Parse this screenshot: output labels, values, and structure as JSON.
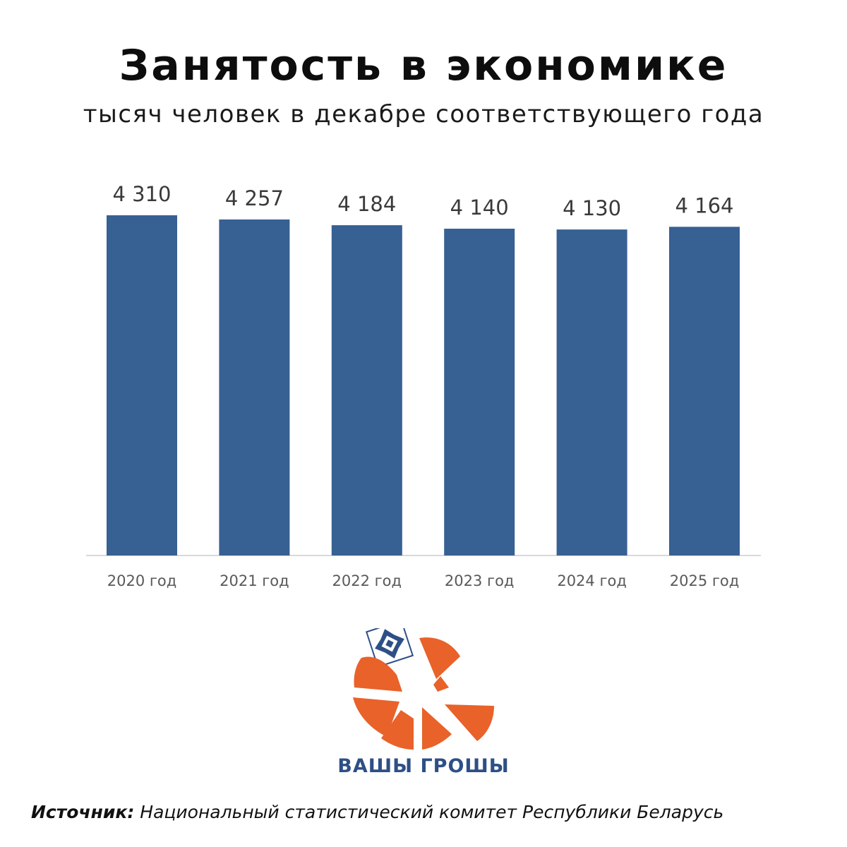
{
  "header": {
    "title": "Занятость в экономике",
    "subtitle": "тысяч человек в декабре соответствующего года"
  },
  "chart_data": {
    "type": "bar",
    "title": "Занятость в экономике",
    "subtitle": "тысяч человек в декабре соответствующего года",
    "categories": [
      "2020 год",
      "2021 год",
      "2022 год",
      "2023 год",
      "2024 год",
      "2025 год"
    ],
    "values": [
      4310,
      4257,
      4184,
      4140,
      4130,
      4164
    ],
    "value_labels": [
      "4 310",
      "4 257",
      "4 184",
      "4 140",
      "4 130",
      "4 164"
    ],
    "bar_color": "#376093",
    "grid": false,
    "legend": "none"
  },
  "brand": {
    "name": "ВАШЫ ГРОШЫ",
    "logo_icon": "vashy-groshy-logo-icon",
    "colors": {
      "orange": "#e8622a",
      "blue": "#2e4f86"
    }
  },
  "footer": {
    "source_label": "Источник:",
    "source_text": " Национальный статистический комитет Республики Беларусь"
  }
}
